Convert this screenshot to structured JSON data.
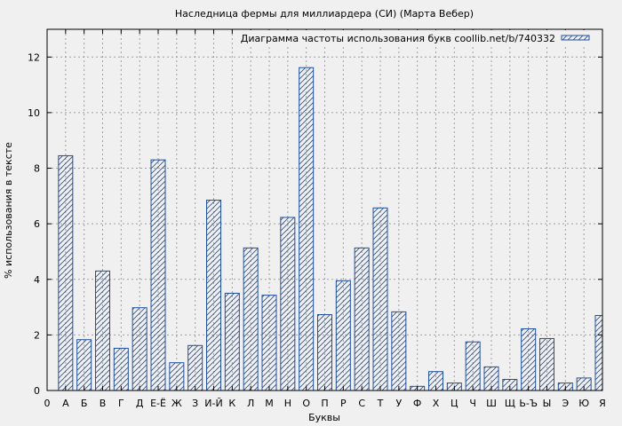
{
  "chart_data": {
    "type": "bar",
    "title": "Наследница фермы для миллиардера (СИ) (Марта Вебер)",
    "xlabel": "Буквы",
    "ylabel": "% использования в тексте",
    "legend": {
      "label": "Диаграмма частоты использования букв coollib.net/b/740332",
      "placement": "top-right"
    },
    "x_tick_labels": [
      "0",
      "А",
      "Б",
      "В",
      "Г",
      "Д",
      "Е-Ё",
      "Ж",
      "З",
      "И-Й",
      "К",
      "Л",
      "М",
      "Н",
      "О",
      "П",
      "Р",
      "С",
      "Т",
      "У",
      "Ф",
      "Х",
      "Ц",
      "Ч",
      "Ш",
      "Щ",
      "Ь-Ъ",
      "Ы",
      "Э",
      "Ю",
      "Я"
    ],
    "categories": [
      "А",
      "Б",
      "В",
      "Г",
      "Д",
      "Е-Ё",
      "Ж",
      "З",
      "И-Й",
      "К",
      "Л",
      "М",
      "Н",
      "О",
      "П",
      "Р",
      "С",
      "Т",
      "У",
      "Ф",
      "Х",
      "Ц",
      "Ч",
      "Ш",
      "Щ",
      "Ь-Ъ",
      "Ы",
      "Э",
      "Ю",
      "Я"
    ],
    "values": [
      8.45,
      1.83,
      4.3,
      1.52,
      2.98,
      8.3,
      1.0,
      1.62,
      6.85,
      3.5,
      5.13,
      3.43,
      6.23,
      11.62,
      2.73,
      3.95,
      5.13,
      6.57,
      2.83,
      0.15,
      0.68,
      0.27,
      1.75,
      0.85,
      0.4,
      2.22,
      1.87,
      0.27,
      0.45,
      2.7
    ],
    "ylim": [
      0,
      13
    ],
    "y_ticks": [
      0,
      2,
      4,
      6,
      8,
      10,
      12
    ],
    "grid": true,
    "colors": {
      "bar_stroke": "#1f4fa0",
      "hatch": "#1f4fa0",
      "background": "#f0f0f0",
      "plot_background": "#f0f0f0",
      "grid": "#a0a0a0"
    }
  }
}
